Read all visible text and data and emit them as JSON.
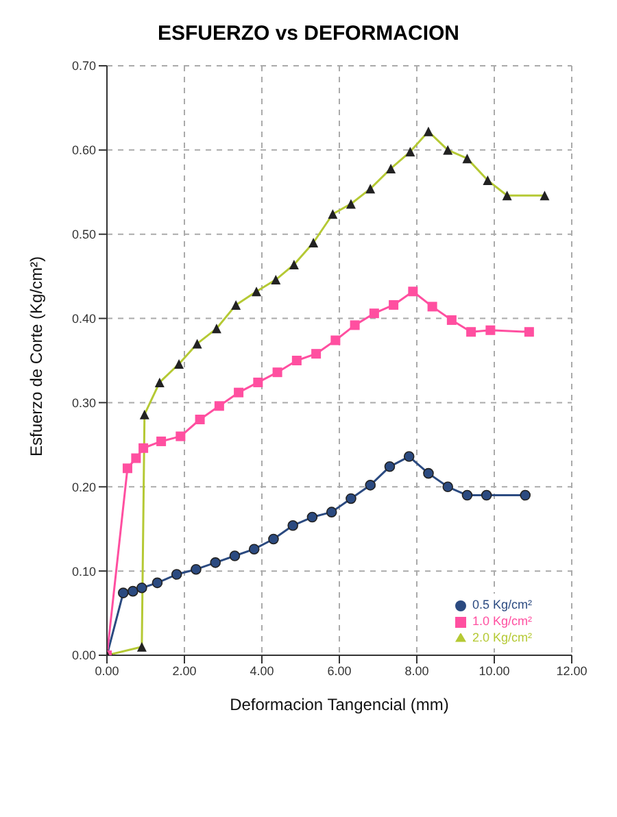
{
  "chart_data": {
    "type": "line",
    "title": "ESFUERZO vs DEFORMACION",
    "xlabel": "Deformacion Tangencial (mm)",
    "ylabel": "Esfuerzo de Corte (Kg/cm²)",
    "xlim": [
      0,
      12
    ],
    "xticks": [
      {
        "value": 0,
        "label": "0.00"
      },
      {
        "value": 2,
        "label": "2.00"
      },
      {
        "value": 4,
        "label": "4.00"
      },
      {
        "value": 6,
        "label": "6.00"
      },
      {
        "value": 8,
        "label": "8.00"
      },
      {
        "value": 10,
        "label": "10.00"
      },
      {
        "value": 12,
        "label": "12.00"
      }
    ],
    "ylim": [
      0,
      0.7
    ],
    "yticks": [
      {
        "value": 0,
        "label": "0.00"
      },
      {
        "value": 0.1,
        "label": "0.10"
      },
      {
        "value": 0.2,
        "label": "0.20"
      },
      {
        "value": 0.3,
        "label": "0.30"
      },
      {
        "value": 0.4,
        "label": "0.40"
      },
      {
        "value": 0.5,
        "label": "0.50"
      },
      {
        "value": 0.6,
        "label": "0.60"
      },
      {
        "value": 0.7,
        "label": "0.70"
      }
    ],
    "grid": true,
    "legend": "bottom right",
    "series": [
      {
        "name": "0.5 Kg/cm²",
        "color": "#2b4a80",
        "marker": "circle",
        "x": [
          0,
          0.42,
          0.67,
          0.9,
          1.3,
          1.8,
          2.3,
          2.8,
          3.3,
          3.8,
          4.3,
          4.8,
          5.3,
          5.8,
          6.3,
          6.8,
          7.3,
          7.8,
          8.3,
          8.8,
          9.3,
          9.8,
          10.8
        ],
        "values": [
          0,
          0.074,
          0.076,
          0.08,
          0.086,
          0.096,
          0.102,
          0.11,
          0.118,
          0.126,
          0.138,
          0.154,
          0.164,
          0.17,
          0.186,
          0.202,
          0.224,
          0.236,
          0.216,
          0.2,
          0.19,
          0.19,
          0.19
        ]
      },
      {
        "name": "1.0 Kg/cm²",
        "color": "#ff4fa0",
        "marker": "square",
        "x": [
          0,
          0.53,
          0.75,
          0.94,
          1.4,
          1.9,
          2.4,
          2.9,
          3.4,
          3.9,
          4.4,
          4.9,
          5.4,
          5.9,
          6.4,
          6.9,
          7.4,
          7.9,
          8.4,
          8.9,
          9.4,
          9.9,
          10.9
        ],
        "values": [
          0,
          0.222,
          0.234,
          0.246,
          0.254,
          0.26,
          0.28,
          0.296,
          0.312,
          0.324,
          0.336,
          0.35,
          0.358,
          0.374,
          0.392,
          0.406,
          0.416,
          0.432,
          0.414,
          0.398,
          0.384,
          0.386,
          0.384
        ]
      },
      {
        "name": "2.0 Kg/cm²",
        "color": "#b5c934",
        "marker": "triangle",
        "x": [
          0,
          0.9,
          0.97,
          1.36,
          1.86,
          2.33,
          2.83,
          3.33,
          3.86,
          4.36,
          4.83,
          5.33,
          5.83,
          6.3,
          6.8,
          7.33,
          7.83,
          8.3,
          8.8,
          9.3,
          9.83,
          10.33,
          11.3
        ],
        "values": [
          0,
          0.01,
          0.286,
          0.324,
          0.346,
          0.37,
          0.388,
          0.416,
          0.432,
          0.446,
          0.464,
          0.49,
          0.524,
          0.536,
          0.554,
          0.578,
          0.598,
          0.622,
          0.6,
          0.59,
          0.564,
          0.546,
          0.546
        ]
      }
    ]
  }
}
